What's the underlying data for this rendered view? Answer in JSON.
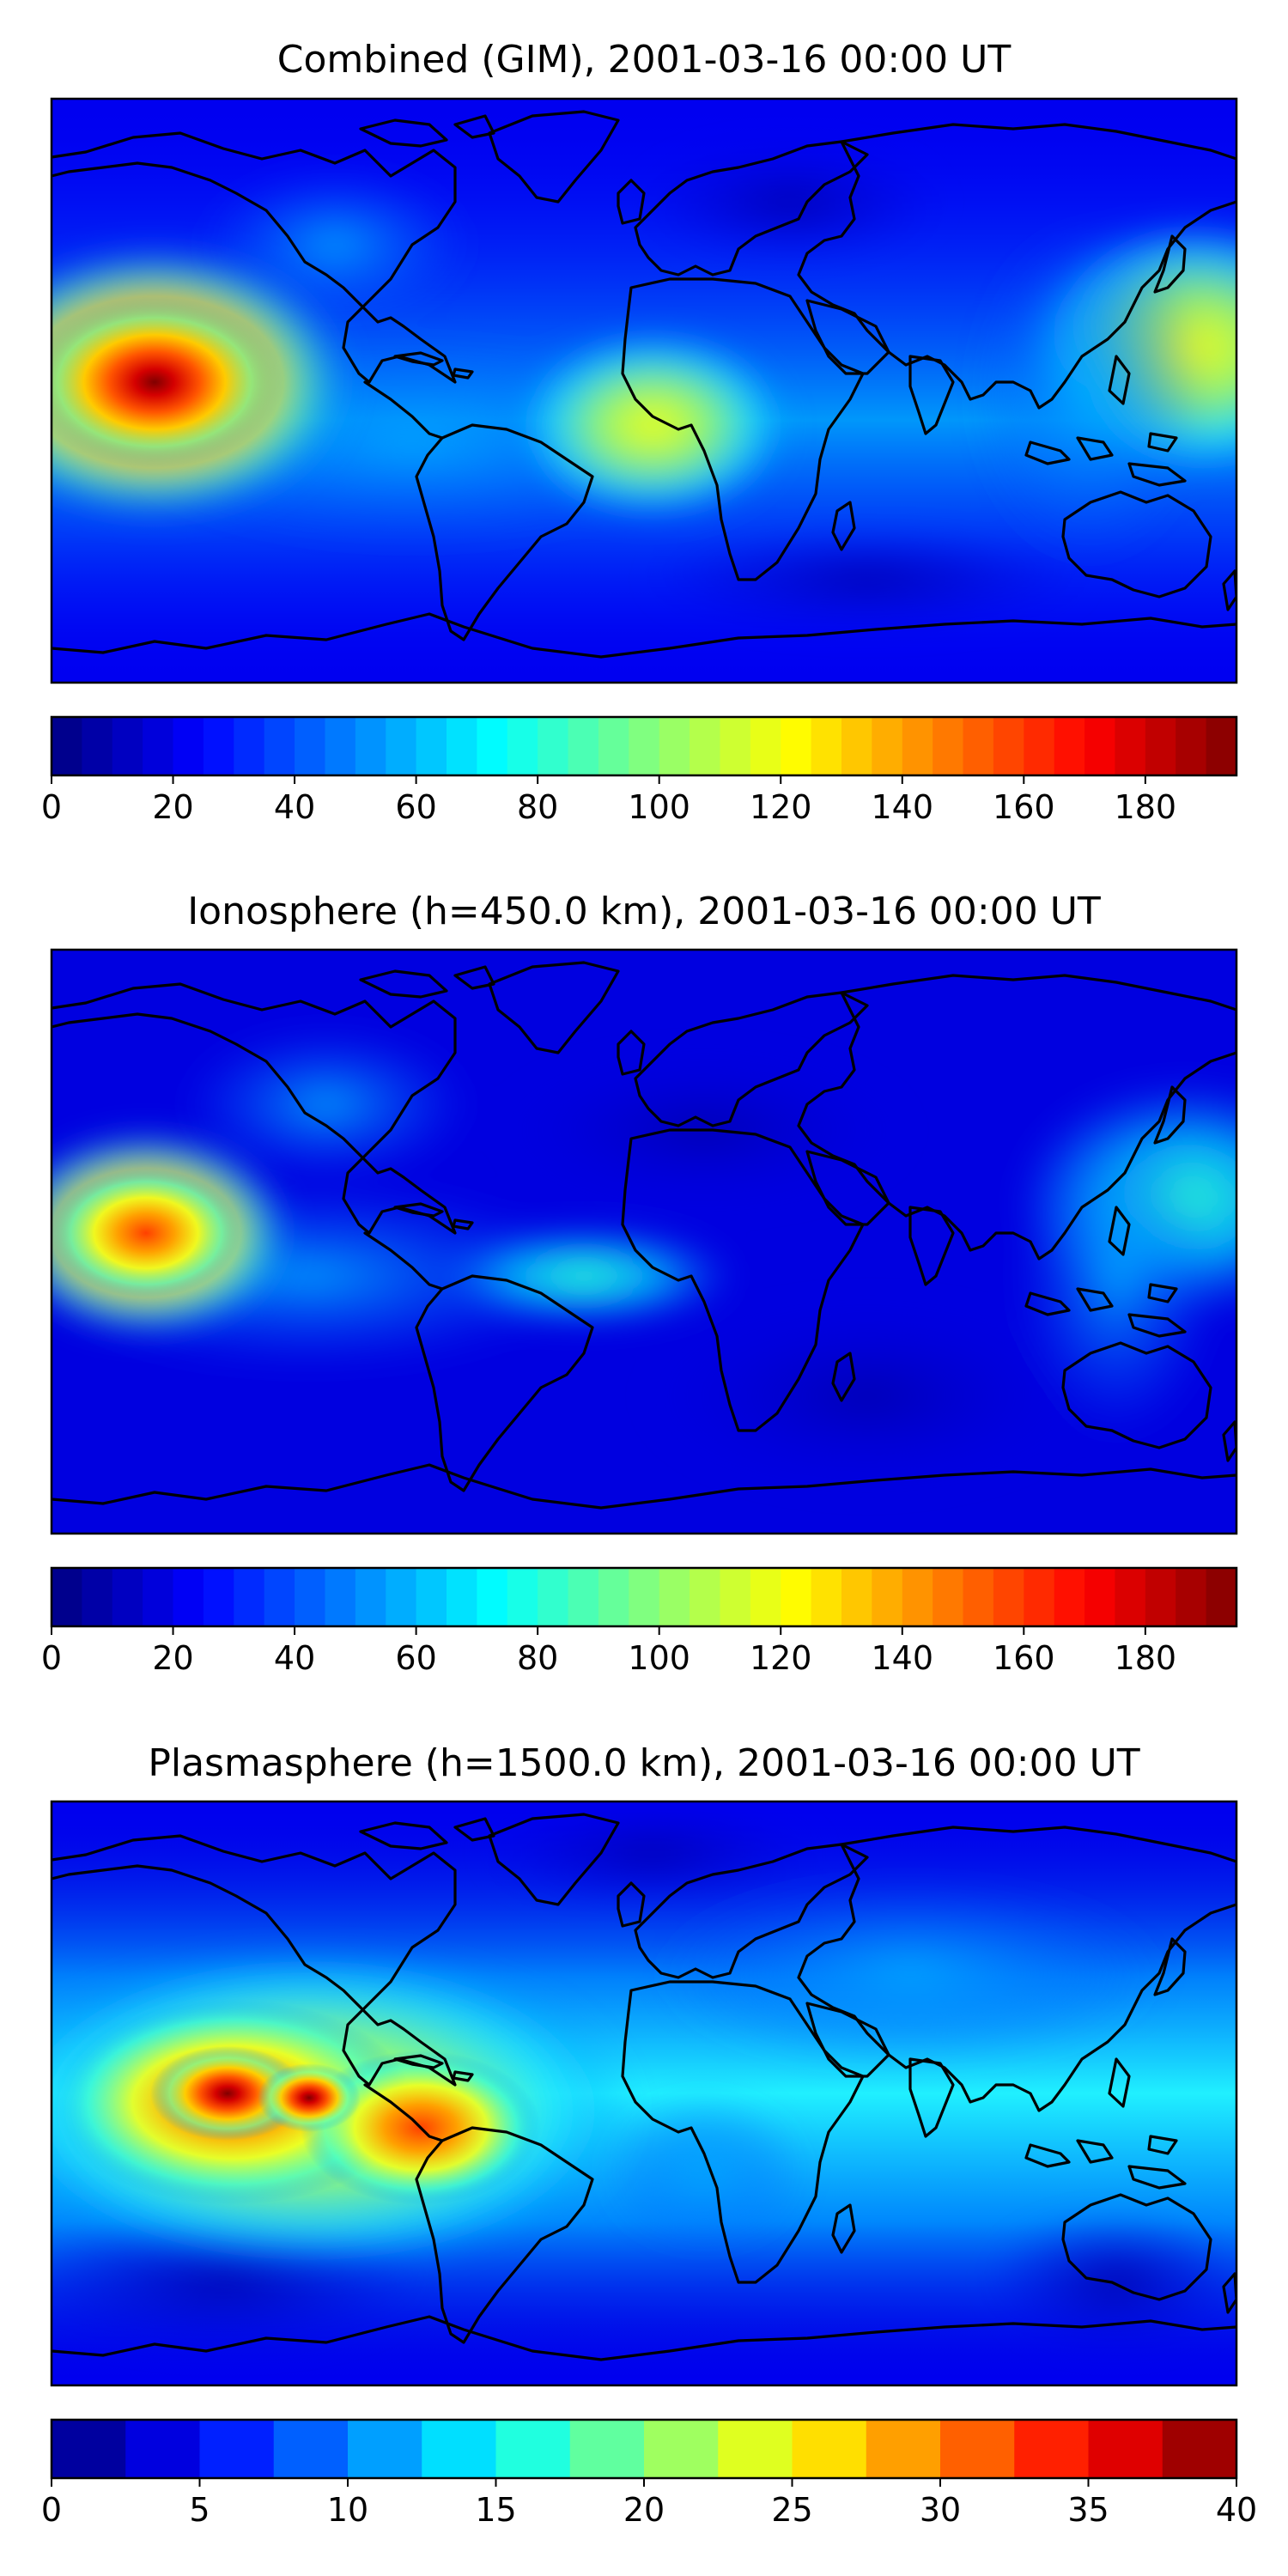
{
  "panels": [
    {
      "id": "combined",
      "title": "Combined (GIM), 2001-03-16 00:00 UT",
      "colorbar": {
        "min": 0,
        "max": 195,
        "levels": 39,
        "ticks": [
          "0",
          "20",
          "40",
          "60",
          "80",
          "100",
          "120",
          "140",
          "160",
          "180"
        ]
      }
    },
    {
      "id": "ionosphere",
      "title": "Ionosphere  (h=450.0 km), 2001-03-16 00:00 UT",
      "colorbar": {
        "min": 0,
        "max": 195,
        "levels": 39,
        "ticks": [
          "0",
          "20",
          "40",
          "60",
          "80",
          "100",
          "120",
          "140",
          "160",
          "180"
        ]
      }
    },
    {
      "id": "plasmasphere",
      "title": "Plasmasphere (h=1500.0 km), 2001-03-16 00:00 UT",
      "colorbar": {
        "min": 0,
        "max": 40,
        "levels": 16,
        "ticks": [
          "0",
          "5",
          "10",
          "15",
          "20",
          "25",
          "30",
          "35",
          "40"
        ]
      }
    }
  ],
  "colormap": "jet"
}
